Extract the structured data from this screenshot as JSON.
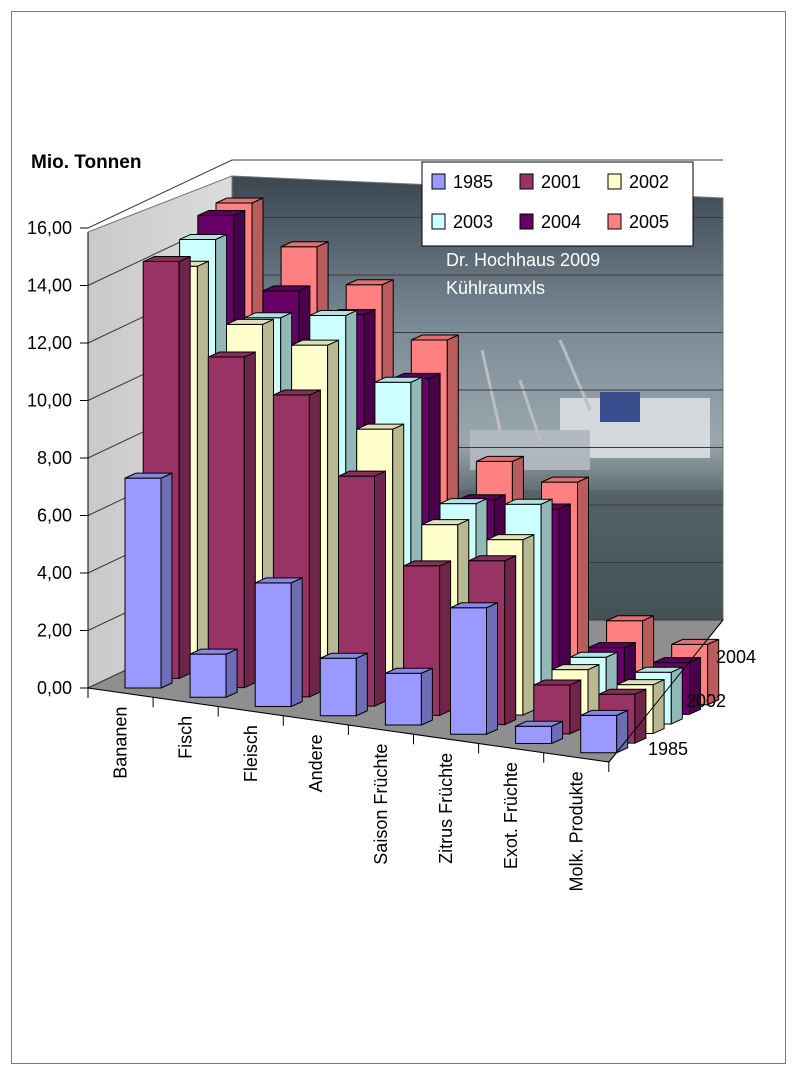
{
  "chart_data": {
    "type": "bar",
    "subtype": "3d-column",
    "ylabel": "Mio. Tonnen",
    "ylim": [
      0,
      16
    ],
    "yticks": [
      "0,00",
      "2,00",
      "4,00",
      "6,00",
      "8,00",
      "10,00",
      "12,00",
      "14,00",
      "16,00"
    ],
    "categories": [
      "Bananen",
      "Fisch",
      "Fleisch",
      "Andere",
      "Saison Früchte",
      "Zitrus Früchte",
      "Exot. Früchte",
      "Molk. Produkte"
    ],
    "depth_labels": [
      "1985",
      "2002",
      "2004"
    ],
    "grid": true,
    "legend_position": "top-right",
    "annotations": [
      "Dr. Hochhaus 2009",
      "Kühlraumxls"
    ],
    "series": [
      {
        "name": "1985",
        "color": "#9999ff",
        "values": [
          7.3,
          1.5,
          4.3,
          2.0,
          1.8,
          4.4,
          0.6,
          1.3
        ]
      },
      {
        "name": "2001",
        "color": "#993366",
        "values": [
          14.5,
          11.5,
          10.5,
          8.0,
          5.2,
          5.7,
          1.7,
          1.7
        ]
      },
      {
        "name": "2002",
        "color": "#ffffcc",
        "values": [
          14.0,
          12.3,
          11.9,
          9.3,
          6.3,
          6.1,
          1.9,
          1.7
        ]
      },
      {
        "name": "2003",
        "color": "#ccffff",
        "values": [
          14.6,
          12.2,
          12.6,
          10.6,
          6.7,
          7.0,
          2.0,
          1.8
        ]
      },
      {
        "name": "2004",
        "color": "#660066",
        "values": [
          15.1,
          12.8,
          12.3,
          10.4,
          6.5,
          6.5,
          2.0,
          1.8
        ]
      },
      {
        "name": "2005",
        "color": "#ff8080",
        "values": [
          15.2,
          14.0,
          13.0,
          11.4,
          7.5,
          7.1,
          2.6,
          2.1
        ]
      }
    ]
  }
}
